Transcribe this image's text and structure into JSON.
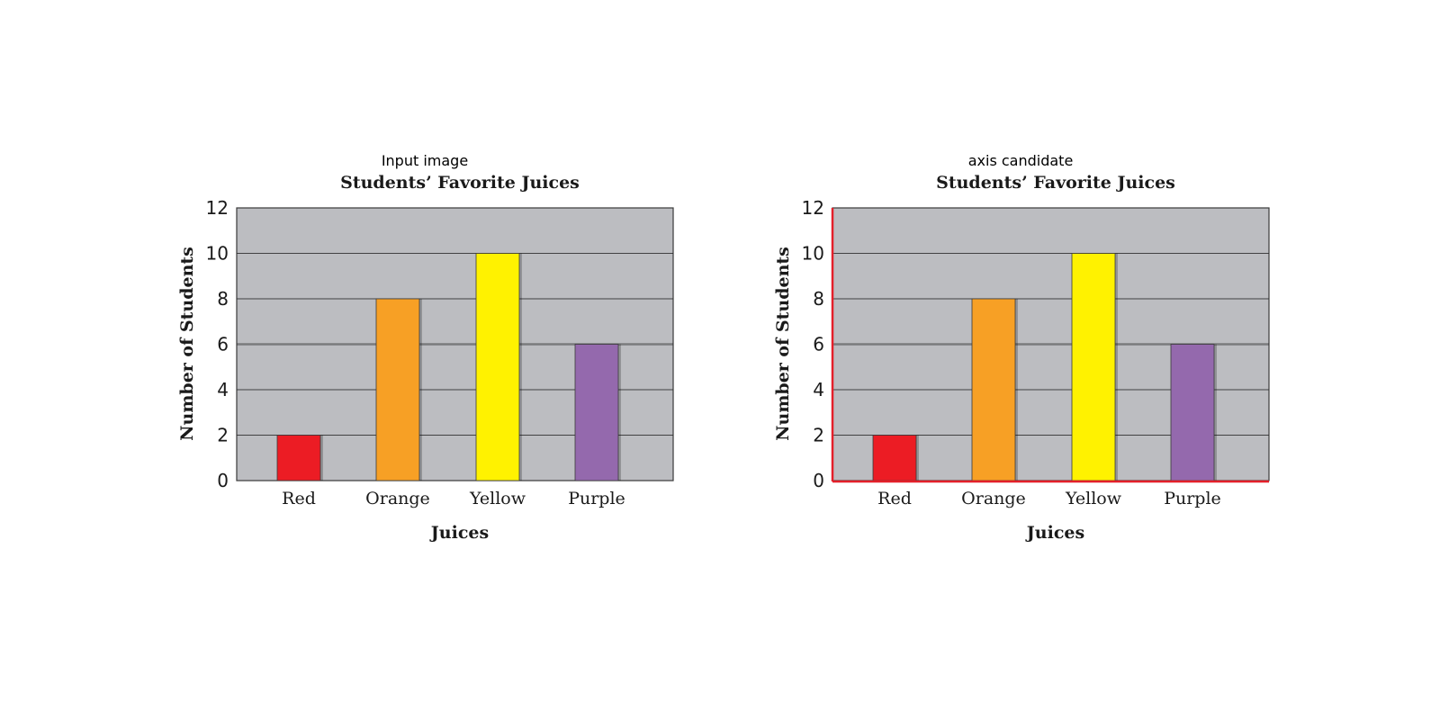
{
  "panels": [
    {
      "caption": "Input image",
      "highlight_axes": false
    },
    {
      "caption": "axis candidate",
      "highlight_axes": true
    }
  ],
  "colors": {
    "plot_background": "#bcbdc1",
    "grid": "#2b2b2b",
    "axis_highlight": "#e3202a"
  },
  "chart_data": {
    "type": "bar",
    "title": "Students’ Favorite Juices",
    "xlabel": "Juices",
    "ylabel": "Number of Students",
    "categories": [
      "Red",
      "Orange",
      "Yellow",
      "Purple"
    ],
    "values": [
      2,
      8,
      10,
      6
    ],
    "bar_colors": [
      "#ec1c24",
      "#f7a025",
      "#fff200",
      "#9469ad"
    ],
    "yticks": [
      "0",
      "2",
      "4",
      "6",
      "8",
      "10",
      "12"
    ],
    "ylim": [
      0,
      12
    ],
    "grid": true
  }
}
